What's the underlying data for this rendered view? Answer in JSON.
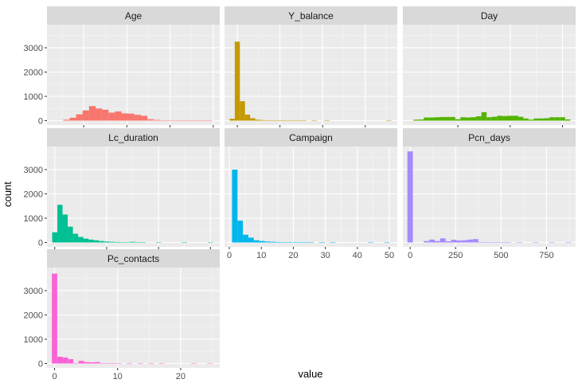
{
  "chart_data": {
    "type": "bar",
    "xlabel": "value",
    "ylabel": "count",
    "grid": true,
    "legend": "none",
    "panels": [
      {
        "name": "Age",
        "color": "#F8766D",
        "xlim": [
          13,
          93
        ],
        "ylim": [
          -180,
          3950
        ],
        "xticks": [
          30,
          50,
          70,
          90
        ],
        "yticks": [
          0,
          1000,
          2000,
          3000
        ],
        "bin_width": 3,
        "bins": [
          {
            "x": 22,
            "y": 40
          },
          {
            "x": 25,
            "y": 120
          },
          {
            "x": 28,
            "y": 260
          },
          {
            "x": 31,
            "y": 420
          },
          {
            "x": 34,
            "y": 600
          },
          {
            "x": 37,
            "y": 500
          },
          {
            "x": 40,
            "y": 450
          },
          {
            "x": 43,
            "y": 330
          },
          {
            "x": 46,
            "y": 380
          },
          {
            "x": 49,
            "y": 300
          },
          {
            "x": 52,
            "y": 290
          },
          {
            "x": 55,
            "y": 240
          },
          {
            "x": 58,
            "y": 200
          },
          {
            "x": 61,
            "y": 60
          },
          {
            "x": 64,
            "y": 30
          },
          {
            "x": 67,
            "y": 15
          },
          {
            "x": 70,
            "y": 10
          },
          {
            "x": 73,
            "y": 8
          },
          {
            "x": 76,
            "y": 8
          },
          {
            "x": 79,
            "y": 6
          },
          {
            "x": 82,
            "y": 5
          },
          {
            "x": 85,
            "y": 3
          },
          {
            "x": 88,
            "y": 2
          }
        ]
      },
      {
        "name": "Y_balance",
        "color": "#C49A00",
        "xlim": [
          -6000,
          75000
        ],
        "ylim": [
          -180,
          3950
        ],
        "xticks": [
          0,
          20000,
          40000,
          60000
        ],
        "yticks": [
          0,
          1000,
          2000,
          3000
        ],
        "bin_width": 2400,
        "bins": [
          {
            "x": -2400,
            "y": 80
          },
          {
            "x": 0,
            "y": 3250
          },
          {
            "x": 2400,
            "y": 800
          },
          {
            "x": 4800,
            "y": 250
          },
          {
            "x": 7200,
            "y": 100
          },
          {
            "x": 9600,
            "y": 40
          },
          {
            "x": 12000,
            "y": 25
          },
          {
            "x": 14400,
            "y": 15
          },
          {
            "x": 16800,
            "y": 10
          },
          {
            "x": 19200,
            "y": 6
          },
          {
            "x": 21600,
            "y": 4
          },
          {
            "x": 24000,
            "y": 3
          },
          {
            "x": 26400,
            "y": 3
          },
          {
            "x": 28800,
            "y": 2
          },
          {
            "x": 31200,
            "y": 2
          },
          {
            "x": 36000,
            "y": 1
          },
          {
            "x": 42000,
            "y": 1
          },
          {
            "x": 71000,
            "y": 1
          }
        ]
      },
      {
        "name": "Day",
        "color": "#53B400",
        "xlim": [
          -0.5,
          32.5
        ],
        "ylim": [
          -180,
          3950
        ],
        "xticks": [
          10,
          20,
          30
        ],
        "yticks": [
          0,
          1000,
          2000,
          3000
        ],
        "bin_width": 1,
        "bins": [
          {
            "x": 2,
            "y": 40
          },
          {
            "x": 3,
            "y": 50
          },
          {
            "x": 4,
            "y": 130
          },
          {
            "x": 5,
            "y": 130
          },
          {
            "x": 6,
            "y": 140
          },
          {
            "x": 7,
            "y": 150
          },
          {
            "x": 8,
            "y": 150
          },
          {
            "x": 9,
            "y": 150
          },
          {
            "x": 10,
            "y": 60
          },
          {
            "x": 11,
            "y": 140
          },
          {
            "x": 12,
            "y": 130
          },
          {
            "x": 13,
            "y": 140
          },
          {
            "x": 14,
            "y": 180
          },
          {
            "x": 15,
            "y": 350
          },
          {
            "x": 16,
            "y": 140
          },
          {
            "x": 17,
            "y": 160
          },
          {
            "x": 18,
            "y": 200
          },
          {
            "x": 19,
            "y": 190
          },
          {
            "x": 20,
            "y": 200
          },
          {
            "x": 21,
            "y": 200
          },
          {
            "x": 22,
            "y": 160
          },
          {
            "x": 23,
            "y": 90
          },
          {
            "x": 24,
            "y": 40
          },
          {
            "x": 25,
            "y": 90
          },
          {
            "x": 26,
            "y": 90
          },
          {
            "x": 27,
            "y": 100
          },
          {
            "x": 28,
            "y": 140
          },
          {
            "x": 29,
            "y": 140
          },
          {
            "x": 30,
            "y": 140
          },
          {
            "x": 31,
            "y": 50
          }
        ]
      },
      {
        "name": "Lc_duration",
        "color": "#00C094",
        "xlim": [
          -150,
          3180
        ],
        "ylim": [
          -180,
          3950
        ],
        "xticks": [
          0,
          1000,
          2000,
          3000
        ],
        "yticks": [
          0,
          1000,
          2000,
          3000
        ],
        "bin_width": 100,
        "bins": [
          {
            "x": 0,
            "y": 420
          },
          {
            "x": 100,
            "y": 1550
          },
          {
            "x": 200,
            "y": 1150
          },
          {
            "x": 300,
            "y": 650
          },
          {
            "x": 400,
            "y": 360
          },
          {
            "x": 500,
            "y": 230
          },
          {
            "x": 600,
            "y": 160
          },
          {
            "x": 700,
            "y": 120
          },
          {
            "x": 800,
            "y": 90
          },
          {
            "x": 900,
            "y": 60
          },
          {
            "x": 1000,
            "y": 40
          },
          {
            "x": 1100,
            "y": 30
          },
          {
            "x": 1200,
            "y": 20
          },
          {
            "x": 1300,
            "y": 12
          },
          {
            "x": 1400,
            "y": 8
          },
          {
            "x": 1500,
            "y": 30
          },
          {
            "x": 1600,
            "y": 5
          },
          {
            "x": 1700,
            "y": 3
          },
          {
            "x": 2000,
            "y": 2
          },
          {
            "x": 2500,
            "y": 2
          },
          {
            "x": 3000,
            "y": 1
          }
        ]
      },
      {
        "name": "Campaign",
        "color": "#00B6EB",
        "xlim": [
          -1.5,
          52.5
        ],
        "ylim": [
          -180,
          3950
        ],
        "xticks": [
          0,
          10,
          20,
          30,
          40,
          50
        ],
        "yticks": [
          0,
          1000,
          2000,
          3000
        ],
        "bin_width": 1.7,
        "bins": [
          {
            "x": 1.7,
            "y": 3000
          },
          {
            "x": 3.4,
            "y": 900
          },
          {
            "x": 5.1,
            "y": 320
          },
          {
            "x": 6.8,
            "y": 200
          },
          {
            "x": 8.5,
            "y": 90
          },
          {
            "x": 10.2,
            "y": 60
          },
          {
            "x": 11.9,
            "y": 40
          },
          {
            "x": 13.6,
            "y": 30
          },
          {
            "x": 15.3,
            "y": 20
          },
          {
            "x": 17,
            "y": 10
          },
          {
            "x": 18.7,
            "y": 8
          },
          {
            "x": 20.4,
            "y": 5
          },
          {
            "x": 22.1,
            "y": 5
          },
          {
            "x": 23.8,
            "y": 4
          },
          {
            "x": 25.5,
            "y": 3
          },
          {
            "x": 28.9,
            "y": 2
          },
          {
            "x": 32.3,
            "y": 2
          },
          {
            "x": 44.2,
            "y": 1
          },
          {
            "x": 49.3,
            "y": 1
          }
        ]
      },
      {
        "name": "Pcn_days",
        "color": "#A58AFF",
        "xlim": [
          -40,
          910
        ],
        "ylim": [
          -180,
          3950
        ],
        "xticks": [
          0,
          250,
          500,
          750
        ],
        "yticks": [
          0,
          1000,
          2000,
          3000
        ],
        "bin_width": 30,
        "bins": [
          {
            "x": 0,
            "y": 3750
          },
          {
            "x": 90,
            "y": 60
          },
          {
            "x": 120,
            "y": 120
          },
          {
            "x": 150,
            "y": 60
          },
          {
            "x": 180,
            "y": 170
          },
          {
            "x": 210,
            "y": 50
          },
          {
            "x": 240,
            "y": 110
          },
          {
            "x": 270,
            "y": 80
          },
          {
            "x": 300,
            "y": 90
          },
          {
            "x": 330,
            "y": 120
          },
          {
            "x": 360,
            "y": 140
          },
          {
            "x": 390,
            "y": 20
          },
          {
            "x": 420,
            "y": 10
          },
          {
            "x": 450,
            "y": 8
          },
          {
            "x": 480,
            "y": 5
          },
          {
            "x": 510,
            "y": 3
          },
          {
            "x": 540,
            "y": 3
          },
          {
            "x": 600,
            "y": 2
          },
          {
            "x": 690,
            "y": 2
          },
          {
            "x": 780,
            "y": 1
          },
          {
            "x": 870,
            "y": 1
          }
        ]
      },
      {
        "name": "Pc_contacts",
        "color": "#FB61D7",
        "xlim": [
          -1.2,
          26.2
        ],
        "ylim": [
          -180,
          3950
        ],
        "xticks": [
          0,
          10,
          20
        ],
        "yticks": [
          0,
          1000,
          2000,
          3000
        ],
        "bin_width": 0.85,
        "bins": [
          {
            "x": 0,
            "y": 3700
          },
          {
            "x": 0.85,
            "y": 280
          },
          {
            "x": 1.7,
            "y": 250
          },
          {
            "x": 2.55,
            "y": 180
          },
          {
            "x": 3.4,
            "y": 20
          },
          {
            "x": 4.25,
            "y": 110
          },
          {
            "x": 5.1,
            "y": 60
          },
          {
            "x": 5.95,
            "y": 50
          },
          {
            "x": 6.8,
            "y": 60
          },
          {
            "x": 7.65,
            "y": 15
          },
          {
            "x": 8.5,
            "y": 10
          },
          {
            "x": 9.35,
            "y": 8
          },
          {
            "x": 10.2,
            "y": 6
          },
          {
            "x": 11.9,
            "y": 4
          },
          {
            "x": 13.6,
            "y": 3
          },
          {
            "x": 15.3,
            "y": 2
          },
          {
            "x": 17,
            "y": 2
          },
          {
            "x": 22.1,
            "y": 1
          },
          {
            "x": 24.65,
            "y": 1
          }
        ]
      }
    ]
  }
}
